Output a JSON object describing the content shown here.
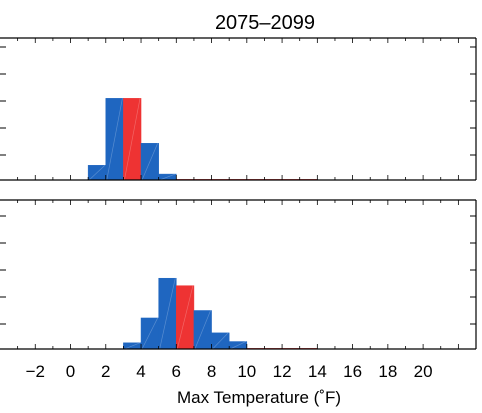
{
  "chart_data": [
    {
      "type": "bar",
      "title": "2075–2099",
      "xlim": [
        -4,
        23
      ],
      "ylim": [
        0,
        6
      ],
      "bin_width": 1,
      "bins": [
        {
          "x": 1.5,
          "value": 0.62,
          "color": "#1f66c0"
        },
        {
          "x": 2.5,
          "value": 3.45,
          "color": "#1f66c0"
        },
        {
          "x": 3.5,
          "value": 3.45,
          "color": "#ee3333"
        },
        {
          "x": 4.5,
          "value": 1.55,
          "color": "#1f66c0"
        },
        {
          "x": 5.5,
          "value": 0.25,
          "color": "#1f66c0"
        }
      ]
    },
    {
      "type": "bar",
      "title": "",
      "xlim": [
        -4,
        23
      ],
      "ylim": [
        0,
        6
      ],
      "bin_width": 1,
      "xlabel": "Max Temperature (˚F)",
      "xticklabels": [
        "−2",
        "0",
        "2",
        "4",
        "6",
        "8",
        "10",
        "12",
        "14",
        "16",
        "18",
        "20"
      ],
      "xtickvalues": [
        -2,
        0,
        2,
        4,
        6,
        8,
        10,
        12,
        14,
        16,
        18,
        20
      ],
      "bins": [
        {
          "x": 3.5,
          "value": 0.25,
          "color": "#1f66c0"
        },
        {
          "x": 4.5,
          "value": 1.25,
          "color": "#1f66c0"
        },
        {
          "x": 5.5,
          "value": 2.85,
          "color": "#1f66c0"
        },
        {
          "x": 6.5,
          "value": 2.55,
          "color": "#ee3333"
        },
        {
          "x": 7.5,
          "value": 1.55,
          "color": "#1f66c0"
        },
        {
          "x": 8.5,
          "value": 0.65,
          "color": "#1f66c0"
        },
        {
          "x": 9.5,
          "value": 0.3,
          "color": "#1f66c0"
        }
      ]
    }
  ]
}
